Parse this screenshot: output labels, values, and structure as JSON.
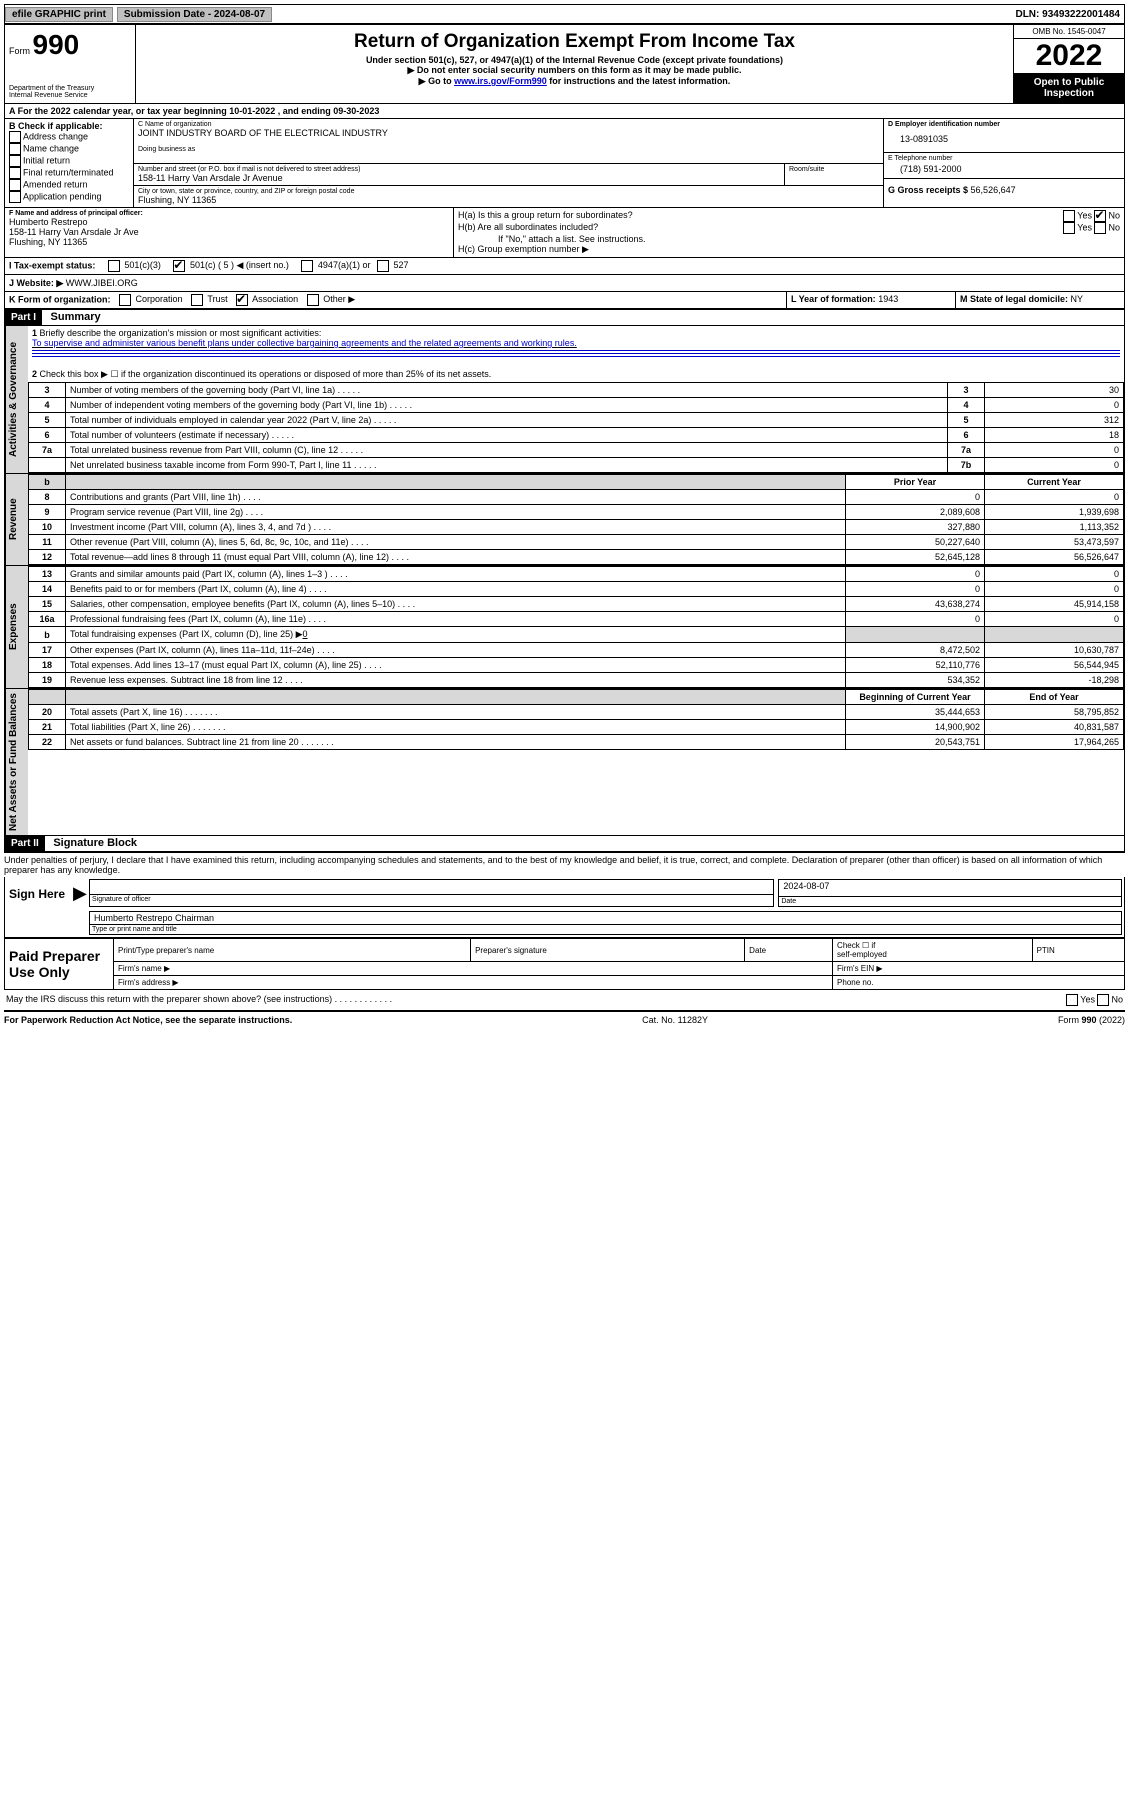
{
  "topbar": {
    "efile": "efile GRAPHIC print",
    "sub_date_label": "Submission Date - 2024-08-07",
    "dln": "DLN: 93493222001484"
  },
  "header": {
    "form_word": "Form",
    "form_num": "990",
    "dept": "Department of the Treasury",
    "irs": "Internal Revenue Service",
    "title": "Return of Organization Exempt From Income Tax",
    "sub1": "Under section 501(c), 527, or 4947(a)(1) of the Internal Revenue Code (except private foundations)",
    "sub2": "▶ Do not enter social security numbers on this form as it may be made public.",
    "sub3_a": "▶ Go to ",
    "sub3_link": "www.irs.gov/Form990",
    "sub3_b": " for instructions and the latest information.",
    "omb": "OMB No. 1545-0047",
    "year": "2022",
    "open": "Open to Public Inspection"
  },
  "line_a": "For the 2022 calendar year, or tax year beginning 10-01-2022   , and ending 09-30-2023",
  "box_b": {
    "label": "B Check if applicable:",
    "opts": [
      "Address change",
      "Name change",
      "Initial return",
      "Final return/terminated",
      "Amended return",
      "Application pending"
    ]
  },
  "box_c": {
    "label": "C Name of organization",
    "name": "JOINT INDUSTRY BOARD OF THE ELECTRICAL INDUSTRY",
    "dba": "Doing business as",
    "street_label": "Number and street (or P.O. box if mail is not delivered to street address)",
    "suite": "Room/suite",
    "street": "158-11 Harry Van Arsdale Jr Avenue",
    "city_label": "City or town, state or province, country, and ZIP or foreign postal code",
    "city": "Flushing, NY  11365"
  },
  "box_d": {
    "label": "D Employer identification number",
    "val": "13-0891035"
  },
  "box_e": {
    "label": "E Telephone number",
    "val": "(718) 591-2000"
  },
  "box_g": {
    "label": "G Gross receipts $ ",
    "val": "56,526,647"
  },
  "box_f": {
    "label": "F Name and address of principal officer:",
    "name": "Humberto Restrepo",
    "addr1": "158-11 Harry Van Arsdale Jr Ave",
    "addr2": "Flushing, NY  11365"
  },
  "box_h": {
    "ha": "H(a)  Is this a group return for subordinates?",
    "hb": "H(b)  Are all subordinates included?",
    "note": "If \"No,\" attach a list. See instructions.",
    "hc": "H(c)  Group exemption number ▶",
    "yes": "Yes",
    "no": "No"
  },
  "box_i": {
    "label": "I   Tax-exempt status:",
    "o1": "501(c)(3)",
    "o2": "501(c) ( 5 ) ◀ (insert no.)",
    "o3": "4947(a)(1) or",
    "o4": "527"
  },
  "box_j": {
    "label": "J   Website: ▶ ",
    "val": "WWW.JIBEI.ORG"
  },
  "box_k": {
    "label": "K Form of organization:",
    "o1": "Corporation",
    "o2": "Trust",
    "o3": "Association",
    "o4": "Other ▶"
  },
  "box_l": {
    "label": "L Year of formation: ",
    "val": "1943"
  },
  "box_m": {
    "label": "M State of legal domicile: ",
    "val": "NY"
  },
  "part1": {
    "label": "Part I",
    "title": "Summary"
  },
  "summary": {
    "q1": "Briefly describe the organization's mission or most significant activities:",
    "a1": "To supervise and administer various benefit plans under collective bargaining agreements and the related agreements and working rules.",
    "q2": "Check this box ▶ ☐ if the organization discontinued its operations or disposed of more than 25% of its net assets.",
    "rows_a": [
      {
        "n": "3",
        "t": "Number of voting members of the governing body (Part VI, line 1a)",
        "k": "3",
        "v": "30"
      },
      {
        "n": "4",
        "t": "Number of independent voting members of the governing body (Part VI, line 1b)",
        "k": "4",
        "v": "0"
      },
      {
        "n": "5",
        "t": "Total number of individuals employed in calendar year 2022 (Part V, line 2a)",
        "k": "5",
        "v": "312"
      },
      {
        "n": "6",
        "t": "Total number of volunteers (estimate if necessary)",
        "k": "6",
        "v": "18"
      },
      {
        "n": "7a",
        "t": "Total unrelated business revenue from Part VIII, column (C), line 12",
        "k": "7a",
        "v": "0"
      },
      {
        "n": "",
        "t": "Net unrelated business taxable income from Form 990-T, Part I, line 11",
        "k": "7b",
        "v": "0"
      }
    ],
    "hdr_b": "b",
    "hdr_prior": "Prior Year",
    "hdr_curr": "Current Year",
    "rows_rev": [
      {
        "n": "8",
        "t": "Contributions and grants (Part VIII, line 1h)",
        "p": "0",
        "c": "0"
      },
      {
        "n": "9",
        "t": "Program service revenue (Part VIII, line 2g)",
        "p": "2,089,608",
        "c": "1,939,698"
      },
      {
        "n": "10",
        "t": "Investment income (Part VIII, column (A), lines 3, 4, and 7d )",
        "p": "327,880",
        "c": "1,113,352"
      },
      {
        "n": "11",
        "t": "Other revenue (Part VIII, column (A), lines 5, 6d, 8c, 9c, 10c, and 11e)",
        "p": "50,227,640",
        "c": "53,473,597"
      },
      {
        "n": "12",
        "t": "Total revenue—add lines 8 through 11 (must equal Part VIII, column (A), line 12)",
        "p": "52,645,128",
        "c": "56,526,647"
      }
    ],
    "rows_exp": [
      {
        "n": "13",
        "t": "Grants and similar amounts paid (Part IX, column (A), lines 1–3 )",
        "p": "0",
        "c": "0"
      },
      {
        "n": "14",
        "t": "Benefits paid to or for members (Part IX, column (A), line 4)",
        "p": "0",
        "c": "0"
      },
      {
        "n": "15",
        "t": "Salaries, other compensation, employee benefits (Part IX, column (A), lines 5–10)",
        "p": "43,638,274",
        "c": "45,914,158"
      },
      {
        "n": "16a",
        "t": "Professional fundraising fees (Part IX, column (A), line 11e)",
        "p": "0",
        "c": "0"
      }
    ],
    "row_16b_n": "b",
    "row_16b_t": "Total fundraising expenses (Part IX, column (D), line 25) ▶",
    "row_16b_v": "0",
    "rows_exp2": [
      {
        "n": "17",
        "t": "Other expenses (Part IX, column (A), lines 11a–11d, 11f–24e)",
        "p": "8,472,502",
        "c": "10,630,787"
      },
      {
        "n": "18",
        "t": "Total expenses. Add lines 13–17 (must equal Part IX, column (A), line 25)",
        "p": "52,110,776",
        "c": "56,544,945"
      },
      {
        "n": "19",
        "t": "Revenue less expenses. Subtract line 18 from line 12",
        "p": "534,352",
        "c": "-18,298"
      }
    ],
    "hdr_boy": "Beginning of Current Year",
    "hdr_eoy": "End of Year",
    "rows_net": [
      {
        "n": "20",
        "t": "Total assets (Part X, line 16)",
        "p": "35,444,653",
        "c": "58,795,852"
      },
      {
        "n": "21",
        "t": "Total liabilities (Part X, line 26)",
        "p": "14,900,902",
        "c": "40,831,587"
      },
      {
        "n": "22",
        "t": "Net assets or fund balances. Subtract line 21 from line 20",
        "p": "20,543,751",
        "c": "17,964,265"
      }
    ]
  },
  "vlabels": {
    "gov": "Activities & Governance",
    "rev": "Revenue",
    "exp": "Expenses",
    "net": "Net Assets or Fund Balances"
  },
  "part2": {
    "label": "Part II",
    "title": "Signature Block"
  },
  "sig": {
    "penalty": "Under penalties of perjury, I declare that I have examined this return, including accompanying schedules and statements, and to the best of my knowledge and belief, it is true, correct, and complete. Declaration of preparer (other than officer) is based on all information of which preparer has any knowledge.",
    "here": "Sign Here",
    "sig_of": "Signature of officer",
    "date_l": "Date",
    "date_v": "2024-08-07",
    "name": "Humberto Restrepo  Chairman",
    "type": "Type or print name and title"
  },
  "prep": {
    "label": "Paid Preparer Use Only",
    "c1": "Print/Type preparer's name",
    "c2": "Preparer's signature",
    "c3": "Date",
    "c4a": "Check ☐ if",
    "c4b": "self-employed",
    "c5": "PTIN",
    "r2a": "Firm's name   ▶",
    "r2b": "Firm's EIN ▶",
    "r3a": "Firm's address ▶",
    "r3b": "Phone no."
  },
  "discuss": "May the IRS discuss this return with the preparer shown above? (see instructions)",
  "footer": {
    "left": "For Paperwork Reduction Act Notice, see the separate instructions.",
    "mid": "Cat. No. 11282Y",
    "right": "Form 990 (2022)"
  }
}
